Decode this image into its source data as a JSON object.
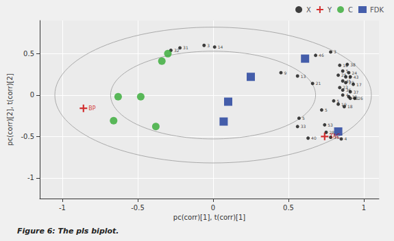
{
  "chart_data": {
    "type": "scatter",
    "xlabel": "pc(corr)[1], t(corr)[1]",
    "ylabel": "pc(corr)[2], t(corr)[2]",
    "caption": "Figure 6: The pls biplot.",
    "xlim": [
      -1.15,
      1.1
    ],
    "ylim": [
      -1.25,
      0.9
    ],
    "xticks": [
      -1,
      -0.5,
      0,
      0.5,
      1
    ],
    "yticks": [
      -1,
      -0.5,
      0,
      0.5
    ],
    "grid": true,
    "legend": "upper right",
    "series": [
      {
        "name": "X",
        "color": "#111111",
        "marker": "circle",
        "x": [
          0.84,
          0.89,
          0.86,
          0.9,
          0.83,
          0.88,
          0.91,
          0.86,
          0.88,
          0.93,
          0.84,
          0.86,
          0.91,
          0.86,
          0.9,
          0.91,
          0.94,
          0.8,
          0.83,
          0.87,
          0.66,
          0.56,
          0.45,
          0.72,
          0.57,
          0.56,
          0.74,
          0.75,
          0.78,
          0.63,
          0.85,
          0.78,
          0.68,
          0.01,
          -0.06,
          -0.22,
          -0.28
        ],
        "y": [
          0.36,
          0.37,
          0.29,
          0.27,
          0.24,
          0.22,
          0.22,
          0.17,
          0.15,
          0.13,
          0.09,
          0.06,
          0.04,
          0.0,
          -0.02,
          -0.04,
          -0.04,
          -0.07,
          -0.11,
          -0.14,
          0.14,
          0.23,
          0.27,
          -0.18,
          -0.28,
          -0.38,
          -0.36,
          -0.45,
          -0.51,
          -0.52,
          -0.53,
          0.52,
          0.48,
          0.58,
          0.6,
          0.57,
          0.54
        ],
        "labels": [
          "16",
          "38",
          "5",
          "24",
          "25",
          "2",
          "43",
          "45",
          "29",
          "17",
          "23",
          "36",
          "37",
          "4",
          "38",
          "42",
          "26",
          "5",
          "19",
          "18",
          "21",
          "13",
          "9",
          "5",
          "5",
          "33",
          "53",
          "28",
          "35",
          "40",
          "4",
          "3",
          "46",
          "14",
          "3",
          "31",
          "32"
        ]
      },
      {
        "name": "Y",
        "color": "#cc0000",
        "marker": "plus",
        "x": [
          -0.86,
          0.74
        ],
        "y": [
          -0.16,
          -0.5
        ],
        "labels": [
          "BP",
          "TAC"
        ]
      },
      {
        "name": "C",
        "color": "#33aa33",
        "marker": "circle",
        "x": [
          -0.3,
          -0.34,
          -0.63,
          -0.48,
          -0.66,
          -0.38
        ],
        "y": [
          0.5,
          0.41,
          -0.02,
          -0.02,
          -0.31,
          -0.38
        ]
      },
      {
        "name": "FDK",
        "color": "#1a3a9a",
        "marker": "square",
        "x": [
          0.61,
          0.25,
          0.1,
          0.07,
          0.83
        ],
        "y": [
          0.44,
          0.22,
          -0.08,
          -0.32,
          -0.44
        ]
      }
    ],
    "ellipses": [
      {
        "rx": 1.05,
        "ry": 0.82,
        "cx": 0.0,
        "cy": 0.0
      },
      {
        "rx": 0.68,
        "ry": 0.53,
        "cx": 0.0,
        "cy": 0.0
      }
    ]
  }
}
